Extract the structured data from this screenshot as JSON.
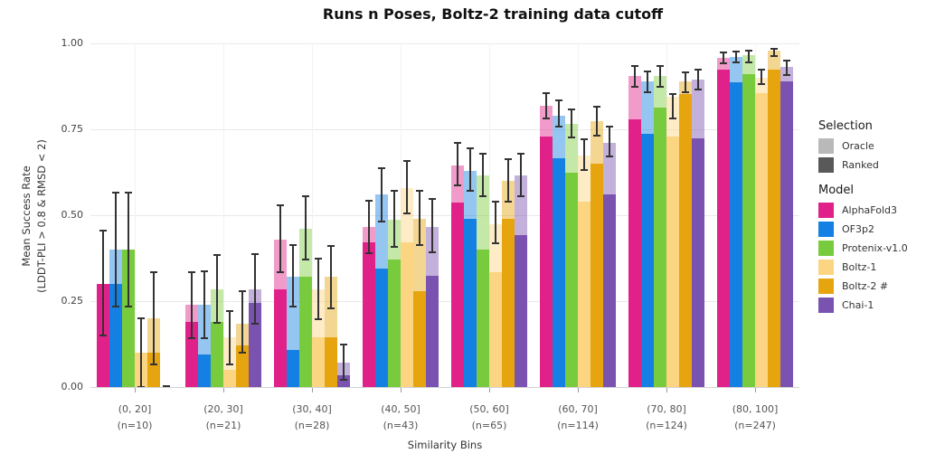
{
  "title": "Runs n Poses, Boltz-2 training data cutoff",
  "axes": {
    "y_label_line1": "Mean Success Rate",
    "y_label_line2": "(LDDT-PLI > 0.8 & RMSD < 2)",
    "x_label": "Similarity Bins",
    "y_ticks": [
      {
        "label": "0.00",
        "value": 0.0
      },
      {
        "label": "0.25",
        "value": 0.25
      },
      {
        "label": "0.50",
        "value": 0.5
      },
      {
        "label": "0.75",
        "value": 0.75
      },
      {
        "label": "1.00",
        "value": 1.0
      }
    ]
  },
  "legend": {
    "selection_title": "Selection",
    "selection_items": [
      {
        "label": "Oracle",
        "color": "#b9b9b9"
      },
      {
        "label": "Ranked",
        "color": "#595959"
      }
    ],
    "model_title": "Model",
    "model_items": [
      {
        "label": "AlphaFold3",
        "color": "#e0218a"
      },
      {
        "label": "OF3p2",
        "color": "#1480e3"
      },
      {
        "label": "Protenix-v1.0",
        "color": "#79cb3e"
      },
      {
        "label": "Boltz-1",
        "color": "#fcd583"
      },
      {
        "label": "Boltz-2 #",
        "color": "#e6a50f"
      },
      {
        "label": "Chai-1",
        "color": "#7a52b0"
      }
    ]
  },
  "chart_data": {
    "type": "bar",
    "title": "Runs n Poses, Boltz-2 training data cutoff",
    "xlabel": "Similarity Bins",
    "ylabel": "Mean Success Rate (LDDT-PLI > 0.8 & RMSD < 2)",
    "ylim": [
      0,
      1
    ],
    "grid": true,
    "legend_position": "right",
    "selection_modes": [
      "Oracle",
      "Ranked"
    ],
    "categories": [
      "(0, 20]",
      "(20, 30]",
      "(30, 40]",
      "(40, 50]",
      "(50, 60]",
      "(60, 70]",
      "(70, 80]",
      "(80, 100]"
    ],
    "counts": [
      "(n=10)",
      "(n=21)",
      "(n=28)",
      "(n=43)",
      "(n=65)",
      "(n=114)",
      "(n=124)",
      "(n=247)"
    ],
    "series": [
      {
        "name": "AlphaFold3",
        "color": "#e0218a",
        "color_oracle": "rgba(224,33,138,0.45)",
        "oracle": [
          0.3,
          0.24,
          0.43,
          0.465,
          0.645,
          0.818,
          0.905,
          0.957
        ],
        "ranked": [
          0.3,
          0.19,
          0.285,
          0.42,
          0.537,
          0.728,
          0.78,
          0.923
        ],
        "err_low": [
          0.15,
          0.142,
          0.334,
          0.389,
          0.587,
          0.781,
          0.875,
          0.943
        ],
        "err_high": [
          0.455,
          0.334,
          0.53,
          0.543,
          0.71,
          0.855,
          0.935,
          0.975
        ]
      },
      {
        "name": "OF3p2",
        "color": "#1480e3",
        "color_oracle": "rgba(20,128,227,0.45)",
        "oracle": [
          0.4,
          0.24,
          0.32,
          0.56,
          0.63,
          0.79,
          0.89,
          0.96
        ],
        "ranked": [
          0.3,
          0.095,
          0.107,
          0.345,
          0.49,
          0.665,
          0.737,
          0.888
        ],
        "err_low": [
          0.235,
          0.142,
          0.233,
          0.481,
          0.572,
          0.758,
          0.857,
          0.945
        ],
        "err_high": [
          0.565,
          0.337,
          0.413,
          0.638,
          0.695,
          0.833,
          0.919,
          0.977
        ]
      },
      {
        "name": "Protenix-v1.0",
        "color": "#79cb3e",
        "color_oracle": "rgba(121,203,62,0.45)",
        "oracle": [
          0.4,
          0.285,
          0.46,
          0.487,
          0.615,
          0.765,
          0.905,
          0.965
        ],
        "ranked": [
          0.4,
          0.19,
          0.32,
          0.37,
          0.4,
          0.625,
          0.813,
          0.91
        ],
        "err_low": [
          0.235,
          0.187,
          0.37,
          0.409,
          0.555,
          0.727,
          0.875,
          0.946
        ],
        "err_high": [
          0.565,
          0.384,
          0.555,
          0.57,
          0.678,
          0.808,
          0.934,
          0.979
        ]
      },
      {
        "name": "Boltz-1",
        "color": "#fcd583",
        "color_oracle": "rgba(252,213,131,0.45)",
        "oracle": [
          0.1,
          0.145,
          0.285,
          0.58,
          0.475,
          0.675,
          0.845,
          0.9
        ],
        "ranked": [
          0.1,
          0.05,
          0.145,
          0.42,
          0.335,
          0.54,
          0.728,
          0.854
        ],
        "err_low": [
          0.0,
          0.065,
          0.198,
          0.506,
          0.418,
          0.631,
          0.781,
          0.881
        ],
        "err_high": [
          0.2,
          0.22,
          0.375,
          0.658,
          0.54,
          0.722,
          0.852,
          0.923
        ]
      },
      {
        "name": "Boltz-2 #",
        "color": "#e6a50f",
        "color_oracle": "rgba(230,165,15,0.45)",
        "oracle": [
          0.2,
          0.185,
          0.32,
          0.49,
          0.6,
          0.775,
          0.89,
          0.978
        ],
        "ranked": [
          0.1,
          0.12,
          0.145,
          0.28,
          0.49,
          0.65,
          0.852,
          0.923
        ],
        "err_low": [
          0.065,
          0.1,
          0.228,
          0.413,
          0.54,
          0.731,
          0.859,
          0.963
        ],
        "err_high": [
          0.335,
          0.28,
          0.41,
          0.57,
          0.663,
          0.817,
          0.916,
          0.985
        ]
      },
      {
        "name": "Chai-1",
        "color": "#7a52b0",
        "color_oracle": "rgba(122,82,176,0.45)",
        "oracle": [
          0.0,
          0.285,
          0.07,
          0.467,
          0.615,
          0.71,
          0.895,
          0.932
        ],
        "ranked": [
          0.0,
          0.245,
          0.035,
          0.325,
          0.443,
          0.56,
          0.724,
          0.89
        ],
        "err_low": [
          0.0,
          0.184,
          0.021,
          0.393,
          0.555,
          0.672,
          0.866,
          0.908
        ],
        "err_high": [
          0.0,
          0.387,
          0.125,
          0.548,
          0.68,
          0.758,
          0.923,
          0.949
        ]
      }
    ]
  }
}
